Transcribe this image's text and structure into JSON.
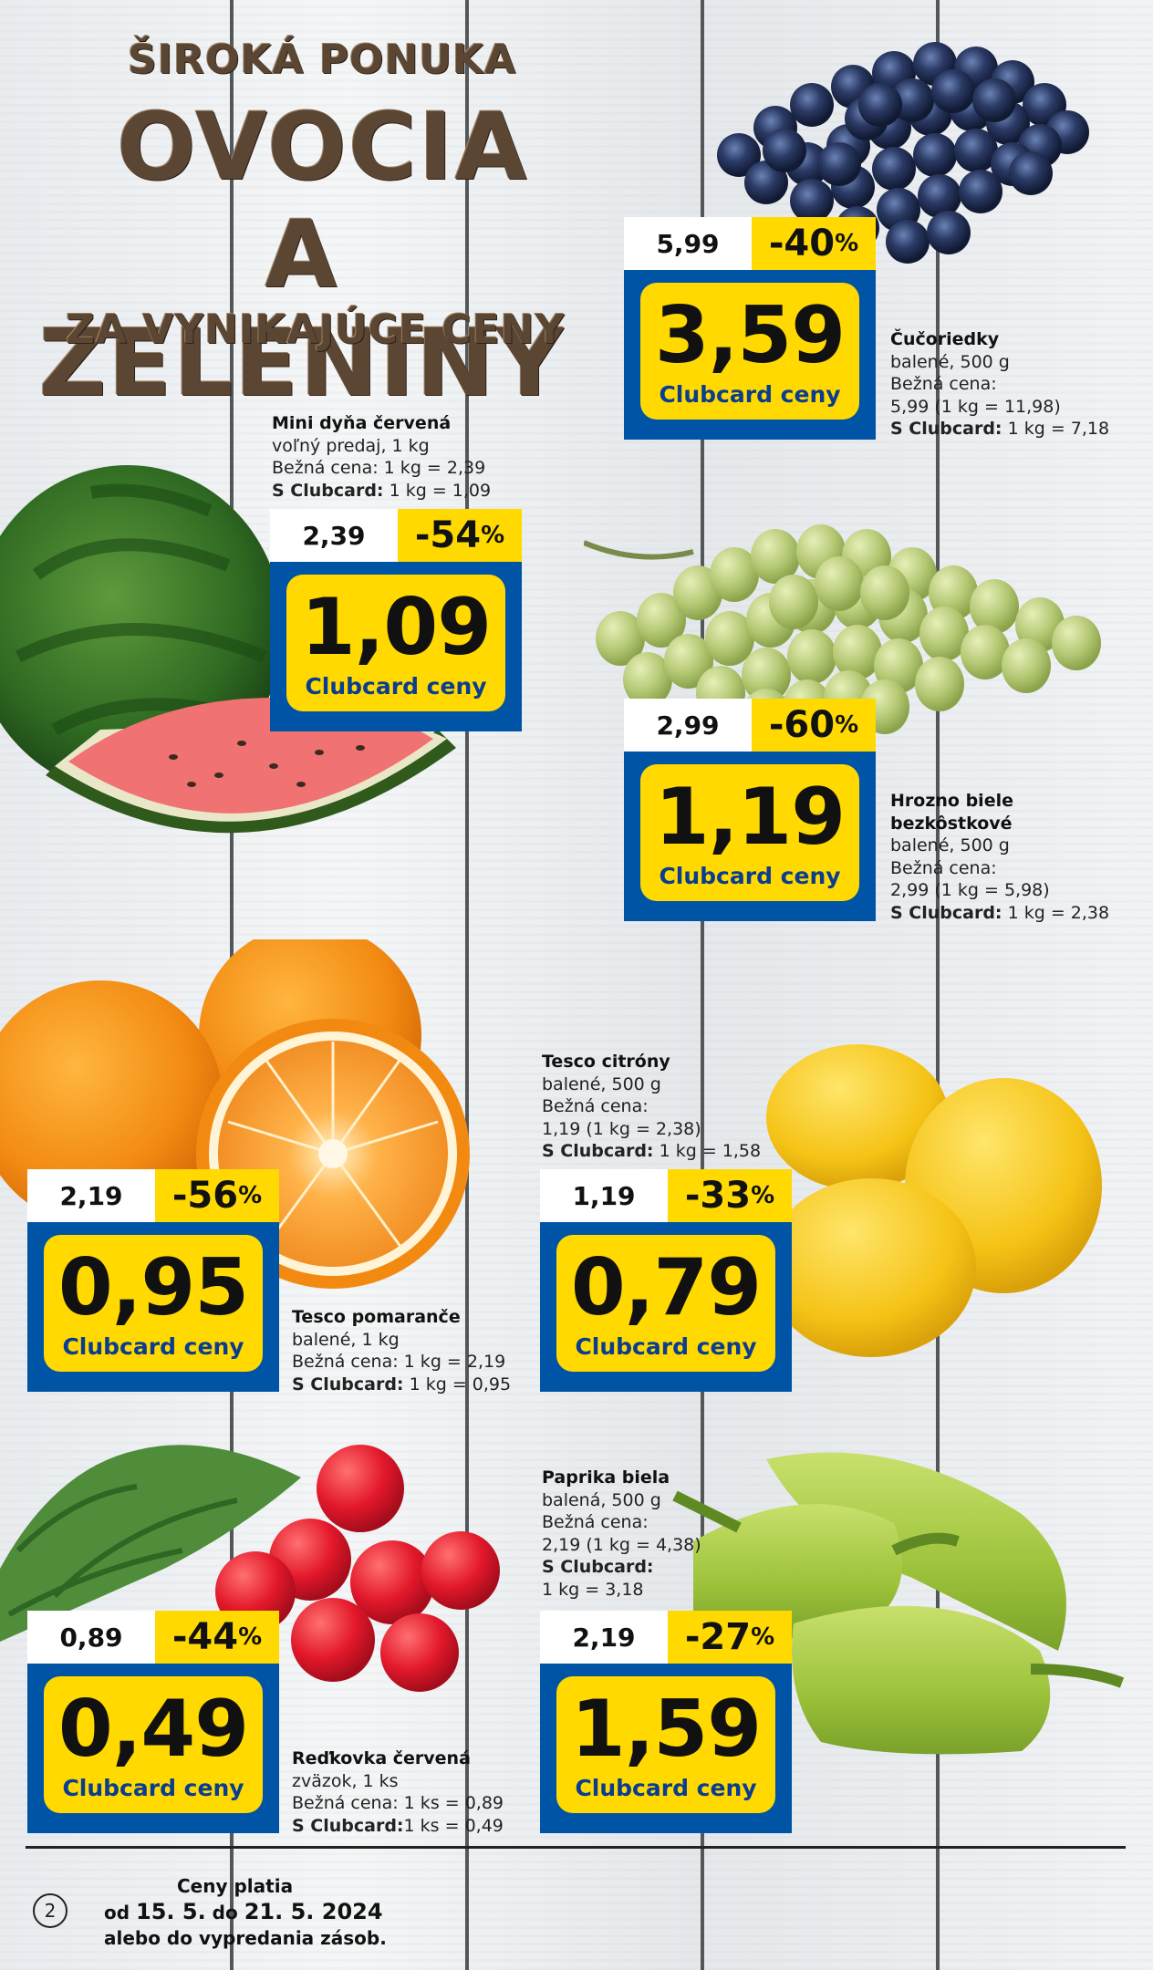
{
  "header": {
    "line1": "ŠIROKÁ PONUKA",
    "line2": "OVOCIA",
    "line3": "A ZELENINY",
    "line4": "ZA VYNIKAJÚCE CENY"
  },
  "products": {
    "blueberries": {
      "old_price": "5,99",
      "discount": "-40",
      "discount_suffix": "%",
      "price": "3,59",
      "label": "Clubcard ceny",
      "name": "Čučoriedky",
      "line1": "balené, 500 g",
      "line2": "Bežná cena:",
      "line3": "5,99 (1 kg = 11,98)",
      "sc_label": "S Clubcard:",
      "sc_value": " 1 kg = 7,18"
    },
    "watermelon": {
      "old_price": "2,39",
      "discount": "-54",
      "discount_suffix": "%",
      "price": "1,09",
      "label": "Clubcard ceny",
      "name": "Mini dyňa červená",
      "line1": "voľný predaj, 1 kg",
      "line2": "Bežná cena: 1 kg = 2,39",
      "sc_label": "S Clubcard:",
      "sc_value": " 1 kg = 1,09"
    },
    "grapes": {
      "old_price": "2,99",
      "discount": "-60",
      "discount_suffix": "%",
      "price": "1,19",
      "label": "Clubcard ceny",
      "name": "Hrozno biele",
      "name2": "bezkôstkové",
      "line1": "balené, 500 g",
      "line2": "Bežná cena:",
      "line3": "2,99 (1 kg = 5,98)",
      "sc_label": "S Clubcard:",
      "sc_value": " 1 kg = 2,38"
    },
    "lemons": {
      "old_price": "1,19",
      "discount": "-33",
      "discount_suffix": "%",
      "price": "0,79",
      "label": "Clubcard ceny",
      "name": "Tesco citróny",
      "line1": "balené, 500 g",
      "line2": "Bežná cena:",
      "line3": "1,19 (1 kg = 2,38)",
      "sc_label": "S Clubcard:",
      "sc_value": " 1 kg = 1,58"
    },
    "oranges": {
      "old_price": "2,19",
      "discount": "-56",
      "discount_suffix": "%",
      "price": "0,95",
      "label": "Clubcard ceny",
      "name": "Tesco pomaranče",
      "line1": "balené, 1 kg",
      "line2": "Bežná cena: 1 kg = 2,19",
      "sc_label": "S Clubcard:",
      "sc_value": " 1 kg = 0,95"
    },
    "pepper": {
      "old_price": "2,19",
      "discount": "-27",
      "discount_suffix": "%",
      "price": "1,59",
      "label": "Clubcard ceny",
      "name": "Paprika biela",
      "line1": "balená, 500 g",
      "line2": "Bežná cena:",
      "line3": "2,19 (1 kg = 4,38)",
      "sc_label": "S Clubcard:",
      "sc_value": "",
      "line4": "1 kg = 3,18"
    },
    "radish": {
      "old_price": "0,89",
      "discount": "-44",
      "discount_suffix": "%",
      "price": "0,49",
      "label": "Clubcard ceny",
      "name": "Reďkovka červená",
      "line1": "zväzok, 1 ks",
      "line2": "Bežná cena: 1 ks = 0,89",
      "sc_label": "S Clubcard:",
      "sc_value": "1 ks = 0,49"
    }
  },
  "footer": {
    "page": "2",
    "line1": "Ceny platia",
    "line2_a": "od ",
    "line2_b": "15. 5.",
    "line2_c": " do ",
    "line2_d": "21. 5. 2024",
    "line3": "alebo do vypredania zásob."
  },
  "colors": {
    "yellow": "#ffd900",
    "blue": "#0054a6",
    "header_brown": "#5b4634"
  }
}
